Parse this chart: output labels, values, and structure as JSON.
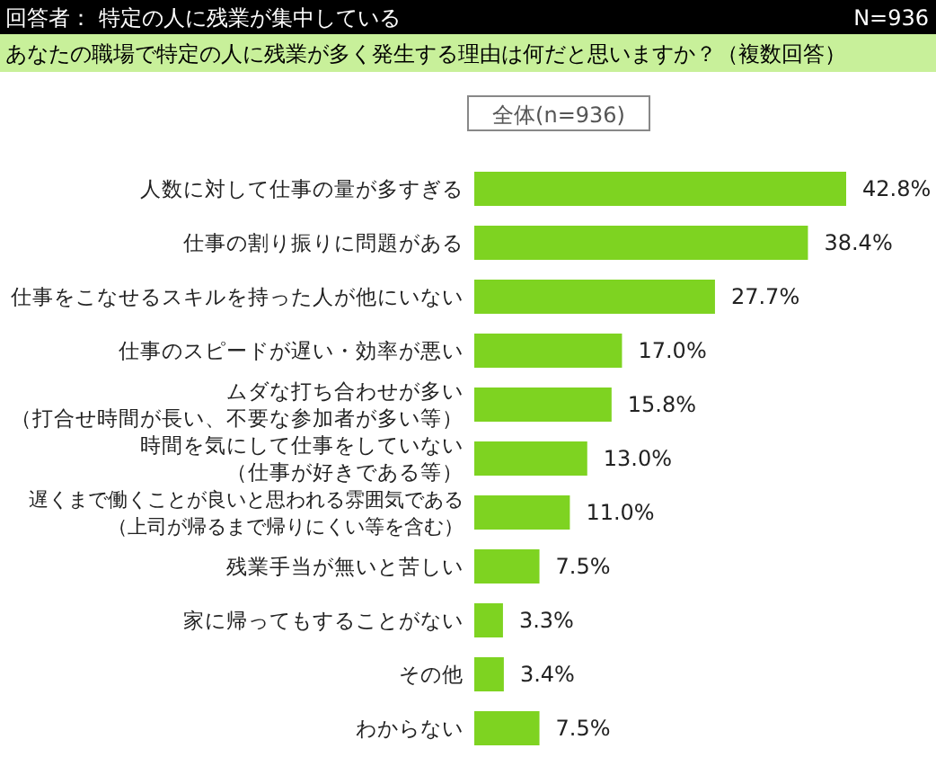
{
  "chart_data": {
    "type": "bar",
    "orientation": "horizontal",
    "title": "回答者： 特定の人に残業が集中している",
    "subtitle": "あなたの職場で特定の人に残業が多く発生する理由は何だと思いますか？（複数回答）",
    "annotations": [
      "N=936"
    ],
    "legend_title": "全体(n=936)",
    "categories": [
      "人数に対して仕事の量が多すぎる",
      "仕事の割り振りに問題がある",
      "仕事をこなせるスキルを持った人が他にいない",
      "仕事のスピードが遅い・効率が悪い",
      "ムダな打ち合わせが多い（打合せ時間が長い、不要な参加者が多い等）",
      "時間を気にして仕事をしていない（仕事が好きである等）",
      "遅くまで働くことが良いと思われる雰囲気である（上司が帰るまで帰りにくい等を含む）",
      "残業手当が無いと苦しい",
      "家に帰ってもすることがない",
      "その他",
      "わからない"
    ],
    "values": [
      42.8,
      38.4,
      27.7,
      17.0,
      15.8,
      13.0,
      11.0,
      7.5,
      3.3,
      3.4,
      7.5
    ],
    "value_labels": [
      "42.8%",
      "38.4%",
      "27.7%",
      "17.0%",
      "15.8%",
      "13.0%",
      "11.0%",
      "7.5%",
      "3.3%",
      "3.4%",
      "7.5%"
    ],
    "color": "#7ed321"
  }
}
